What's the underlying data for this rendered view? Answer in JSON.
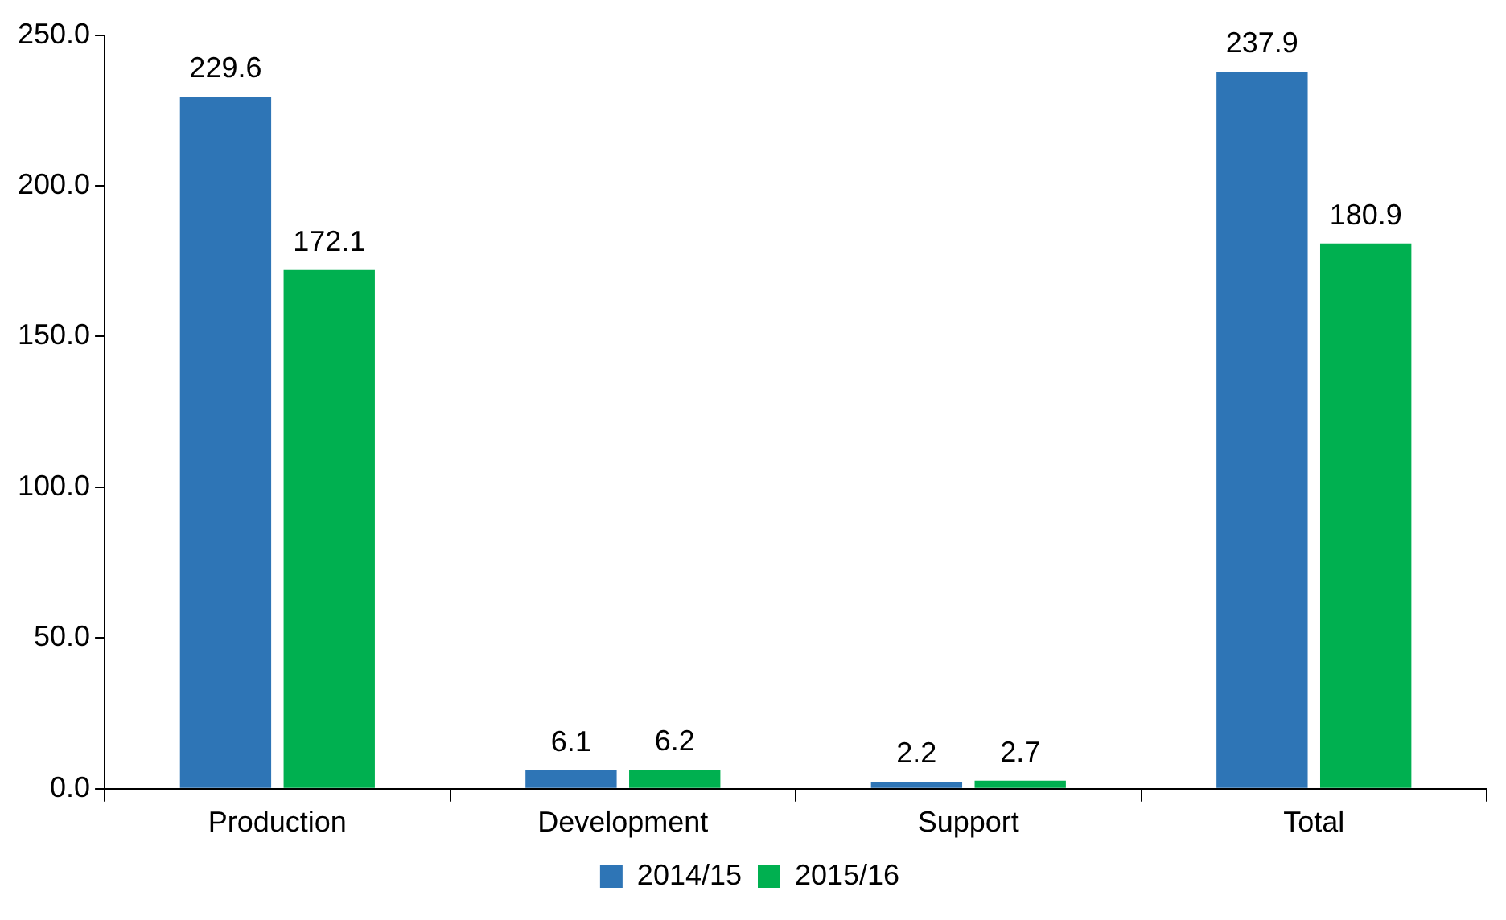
{
  "chart_data": {
    "type": "bar",
    "categories": [
      "Production",
      "Development",
      "Support",
      "Total"
    ],
    "series": [
      {
        "name": "2014/15",
        "color": "#2e75b6",
        "values": [
          229.6,
          6.1,
          2.2,
          237.9
        ]
      },
      {
        "name": "2015/16",
        "color": "#00b050",
        "values": [
          172.1,
          6.2,
          2.7,
          180.9
        ]
      }
    ],
    "ylim": [
      0,
      250
    ],
    "yticks": [
      {
        "value": 0,
        "label": "0.0"
      },
      {
        "value": 50,
        "label": "50.0"
      },
      {
        "value": 100,
        "label": "100.0"
      },
      {
        "value": 150,
        "label": "150.0"
      },
      {
        "value": 200,
        "label": "200.0"
      },
      {
        "value": 250,
        "label": "250.0"
      }
    ],
    "grid": false,
    "legend": "bottom",
    "data_labels": true
  }
}
